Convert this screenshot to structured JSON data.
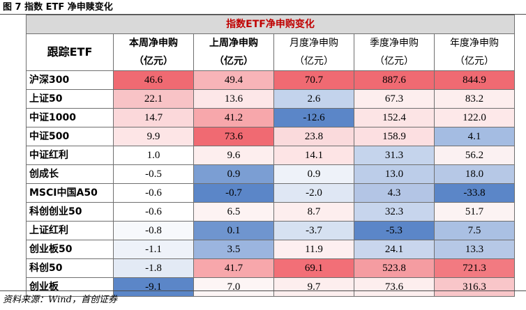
{
  "figure_title": "图 7 指数 ETF 净申赎变化",
  "table_title": "指数ETF净申购变化",
  "corner_header": "跟踪ETF",
  "columns": [
    {
      "line1": "本周净申购",
      "line2": "（亿元）",
      "weight": "bold"
    },
    {
      "line1": "上周净申购",
      "line2": "（亿元）",
      "weight": "bold"
    },
    {
      "line1": "月度净申购",
      "line2": "（亿元）",
      "weight": "reg"
    },
    {
      "line1": "季度净申购",
      "line2": "（亿元）",
      "weight": "reg"
    },
    {
      "line1": "年度净申购",
      "line2": "（亿元）",
      "weight": "reg"
    }
  ],
  "rows": [
    {
      "name": "沪深300",
      "values": [
        "46.6",
        "49.4",
        "70.7",
        "887.6",
        "844.9"
      ],
      "colors": [
        "#f06a72",
        "#f8b4b8",
        "#f06a72",
        "#f06a72",
        "#f06a72"
      ]
    },
    {
      "name": "上证50",
      "values": [
        "22.1",
        "13.6",
        "2.6",
        "67.3",
        "83.2"
      ],
      "colors": [
        "#f8c3c6",
        "#fde7e8",
        "#c3d3ec",
        "#fdeeee",
        "#fdeeee"
      ]
    },
    {
      "name": "中证1000",
      "values": [
        "14.7",
        "41.2",
        "-12.6",
        "152.4",
        "122.0"
      ],
      "colors": [
        "#fbd8da",
        "#f7a7ab",
        "#5b86c8",
        "#fce4e5",
        "#fde8e9"
      ]
    },
    {
      "name": "中证500",
      "values": [
        "9.9",
        "73.6",
        "23.8",
        "158.9",
        "4.1"
      ],
      "colors": [
        "#fde5e6",
        "#f06a72",
        "#fadadc",
        "#fcdfe1",
        "#a4bce2"
      ]
    },
    {
      "name": "中证红利",
      "values": [
        "1.0",
        "9.6",
        "14.1",
        "31.3",
        "56.2"
      ],
      "colors": [
        "#ffffff",
        "#fdeeee",
        "#fde4e5",
        "#c5d4ec",
        "#fbf1f2"
      ]
    },
    {
      "name": "创成长",
      "values": [
        "-0.5",
        "0.9",
        "0.9",
        "13.0",
        "18.0"
      ],
      "colors": [
        "#ffffff",
        "#7b9ed3",
        "#eef2f9",
        "#bccde9",
        "#b6c8e6"
      ]
    },
    {
      "name": "MSCI中国A50",
      "values": [
        "-0.6",
        "-0.7",
        "-2.0",
        "4.3",
        "-33.8"
      ],
      "colors": [
        "#ffffff",
        "#5b86c8",
        "#dfe7f4",
        "#b3c5e5",
        "#5b86c8"
      ]
    },
    {
      "name": "科创创业50",
      "values": [
        "-0.6",
        "6.5",
        "8.7",
        "32.3",
        "51.7"
      ],
      "colors": [
        "#ffffff",
        "#fdf3f3",
        "#fdeeee",
        "#c7d5ed",
        "#fcf3f3"
      ]
    },
    {
      "name": "上证红利",
      "values": [
        "-0.8",
        "0.1",
        "-3.7",
        "-5.3",
        "7.5"
      ],
      "colors": [
        "#f7f9fc",
        "#6f95cf",
        "#d6e1f1",
        "#5b86c8",
        "#aac0e3"
      ]
    },
    {
      "name": "创业板50",
      "values": [
        "-1.1",
        "3.5",
        "11.9",
        "24.1",
        "13.3"
      ],
      "colors": [
        "#eef2f9",
        "#9bb5df",
        "#fdeff0",
        "#c9d6ed",
        "#b6c8e6"
      ]
    },
    {
      "name": "科创50",
      "values": [
        "-1.8",
        "41.7",
        "69.1",
        "523.8",
        "721.3"
      ],
      "colors": [
        "#e3eaf5",
        "#f7a7ab",
        "#f26f77",
        "#f59ca1",
        "#f27a81"
      ]
    },
    {
      "name": "创业板",
      "values": [
        "-9.1",
        "7.0",
        "9.7",
        "73.6",
        "316.3"
      ],
      "colors": [
        "#5b86c8",
        "#fdf5f5",
        "#fdeeee",
        "#fdeeee",
        "#f9c6c9"
      ]
    }
  ],
  "source_note": "资料来源：Wind，首创证券"
}
